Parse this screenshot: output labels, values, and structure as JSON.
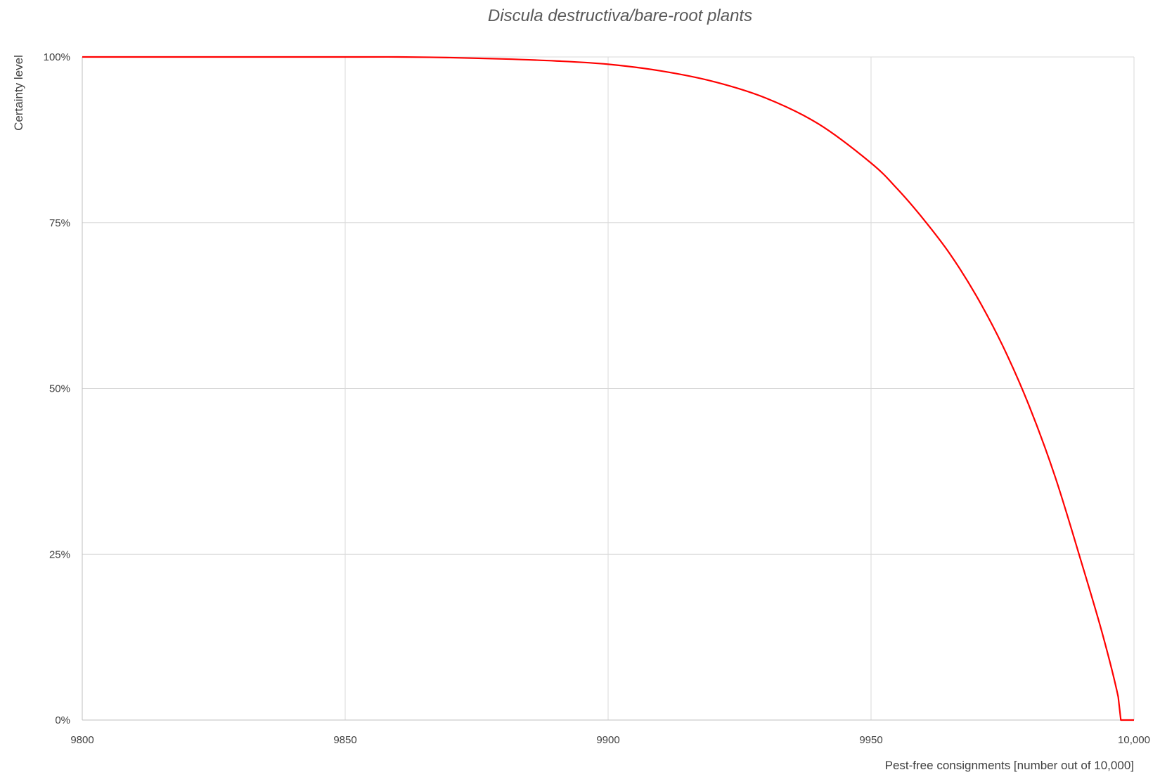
{
  "chart_data": {
    "type": "line",
    "title": "Discula destructiva/bare-root plants",
    "xlabel": "Pest-free consignments [number out of 10,000]",
    "ylabel": "Certainty level",
    "xlim": [
      9800,
      10000
    ],
    "ylim": [
      0,
      1
    ],
    "x_ticks": [
      {
        "value": 9800,
        "label": "9800"
      },
      {
        "value": 9850,
        "label": "9850"
      },
      {
        "value": 9900,
        "label": "9900"
      },
      {
        "value": 9950,
        "label": "9950"
      },
      {
        "value": 10000,
        "label": "10,000"
      }
    ],
    "y_ticks": [
      {
        "value": 0,
        "label": "0%"
      },
      {
        "value": 0.25,
        "label": "25%"
      },
      {
        "value": 0.5,
        "label": "50%"
      },
      {
        "value": 0.75,
        "label": "75%"
      },
      {
        "value": 1,
        "label": "100%"
      }
    ],
    "grid": true,
    "legend": "none",
    "series": [
      {
        "color": "#ff0000",
        "points": [
          [
            9800,
            1.0
          ],
          [
            9850,
            1.0
          ],
          [
            9860,
            1.0
          ],
          [
            9870,
            0.999
          ],
          [
            9880,
            0.997
          ],
          [
            9890,
            0.994
          ],
          [
            9900,
            0.989
          ],
          [
            9910,
            0.979
          ],
          [
            9920,
            0.963
          ],
          [
            9930,
            0.938
          ],
          [
            9940,
            0.899
          ],
          [
            9950,
            0.84
          ],
          [
            9955,
            0.801
          ],
          [
            9960,
            0.755
          ],
          [
            9965,
            0.703
          ],
          [
            9970,
            0.64
          ],
          [
            9975,
            0.565
          ],
          [
            9980,
            0.475
          ],
          [
            9985,
            0.367
          ],
          [
            9990,
            0.238
          ],
          [
            9994,
            0.13
          ],
          [
            9997,
            0.035
          ],
          [
            9997.5,
            0.0
          ],
          [
            10000,
            0.0
          ]
        ]
      }
    ]
  }
}
